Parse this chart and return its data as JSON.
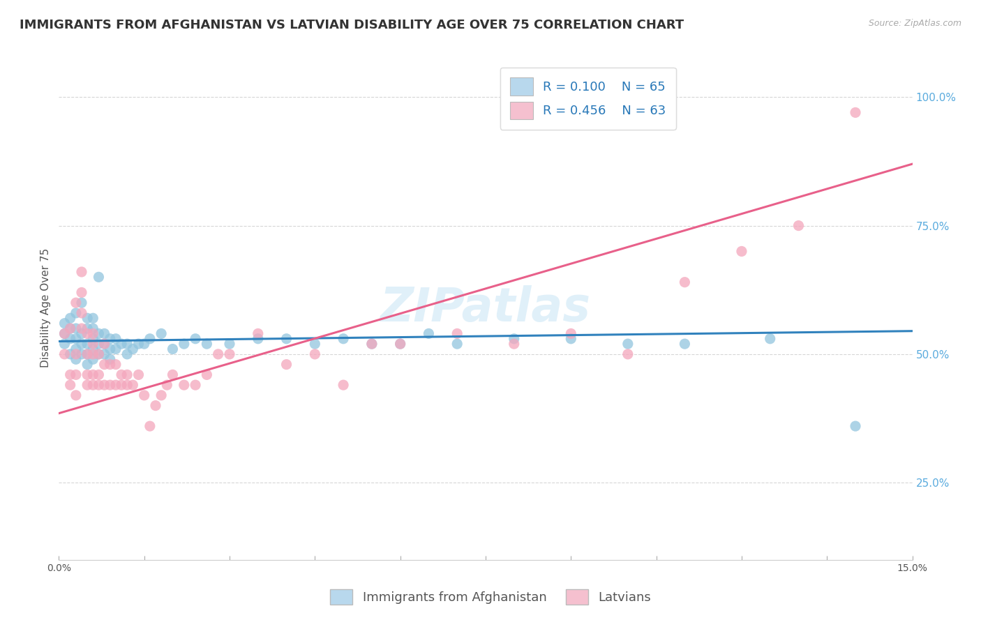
{
  "title": "IMMIGRANTS FROM AFGHANISTAN VS LATVIAN DISABILITY AGE OVER 75 CORRELATION CHART",
  "source_text": "Source: ZipAtlas.com",
  "ylabel": "Disability Age Over 75",
  "xlim": [
    0.0,
    0.15
  ],
  "ylim": [
    0.1,
    1.08
  ],
  "xticks": [
    0.0,
    0.015,
    0.03,
    0.045,
    0.06,
    0.075,
    0.09,
    0.105,
    0.12,
    0.135,
    0.15
  ],
  "yticks": [
    0.25,
    0.5,
    0.75,
    1.0
  ],
  "yticklabels": [
    "25.0%",
    "50.0%",
    "75.0%",
    "100.0%"
  ],
  "legend_r1": "R = 0.100",
  "legend_n1": "N = 65",
  "legend_r2": "R = 0.456",
  "legend_n2": "N = 63",
  "color_blue": "#92c5de",
  "color_blue_line": "#3182bd",
  "color_pink": "#f4a6bc",
  "color_pink_line": "#e8608a",
  "color_blue_legend_box": "#b8d8ed",
  "color_pink_legend_box": "#f5c0cf",
  "watermark_text": "ZIPatlas",
  "blue_scatter_x": [
    0.001,
    0.001,
    0.001,
    0.002,
    0.002,
    0.002,
    0.002,
    0.003,
    0.003,
    0.003,
    0.003,
    0.003,
    0.004,
    0.004,
    0.004,
    0.004,
    0.005,
    0.005,
    0.005,
    0.005,
    0.005,
    0.006,
    0.006,
    0.006,
    0.006,
    0.006,
    0.007,
    0.007,
    0.007,
    0.007,
    0.008,
    0.008,
    0.008,
    0.009,
    0.009,
    0.009,
    0.01,
    0.01,
    0.011,
    0.012,
    0.012,
    0.013,
    0.014,
    0.015,
    0.016,
    0.018,
    0.02,
    0.022,
    0.024,
    0.026,
    0.03,
    0.035,
    0.04,
    0.045,
    0.05,
    0.055,
    0.06,
    0.065,
    0.07,
    0.08,
    0.09,
    0.1,
    0.11,
    0.125,
    0.14
  ],
  "blue_scatter_y": [
    0.52,
    0.54,
    0.56,
    0.5,
    0.53,
    0.55,
    0.57,
    0.49,
    0.51,
    0.53,
    0.55,
    0.58,
    0.5,
    0.52,
    0.54,
    0.6,
    0.48,
    0.5,
    0.52,
    0.55,
    0.57,
    0.49,
    0.51,
    0.53,
    0.55,
    0.57,
    0.5,
    0.52,
    0.54,
    0.65,
    0.5,
    0.52,
    0.54,
    0.49,
    0.51,
    0.53,
    0.51,
    0.53,
    0.52,
    0.5,
    0.52,
    0.51,
    0.52,
    0.52,
    0.53,
    0.54,
    0.51,
    0.52,
    0.53,
    0.52,
    0.52,
    0.53,
    0.53,
    0.52,
    0.53,
    0.52,
    0.52,
    0.54,
    0.52,
    0.53,
    0.53,
    0.52,
    0.52,
    0.53,
    0.36
  ],
  "pink_scatter_x": [
    0.001,
    0.001,
    0.002,
    0.002,
    0.002,
    0.003,
    0.003,
    0.003,
    0.003,
    0.004,
    0.004,
    0.004,
    0.004,
    0.005,
    0.005,
    0.005,
    0.005,
    0.006,
    0.006,
    0.006,
    0.006,
    0.006,
    0.007,
    0.007,
    0.007,
    0.008,
    0.008,
    0.008,
    0.009,
    0.009,
    0.01,
    0.01,
    0.011,
    0.011,
    0.012,
    0.012,
    0.013,
    0.014,
    0.015,
    0.016,
    0.017,
    0.018,
    0.019,
    0.02,
    0.022,
    0.024,
    0.026,
    0.028,
    0.03,
    0.035,
    0.04,
    0.045,
    0.05,
    0.055,
    0.06,
    0.07,
    0.08,
    0.09,
    0.1,
    0.11,
    0.12,
    0.13,
    0.14
  ],
  "pink_scatter_y": [
    0.5,
    0.54,
    0.44,
    0.46,
    0.55,
    0.42,
    0.46,
    0.5,
    0.6,
    0.55,
    0.58,
    0.62,
    0.66,
    0.44,
    0.46,
    0.5,
    0.54,
    0.44,
    0.46,
    0.5,
    0.52,
    0.54,
    0.44,
    0.46,
    0.5,
    0.44,
    0.48,
    0.52,
    0.44,
    0.48,
    0.44,
    0.48,
    0.44,
    0.46,
    0.44,
    0.46,
    0.44,
    0.46,
    0.42,
    0.36,
    0.4,
    0.42,
    0.44,
    0.46,
    0.44,
    0.44,
    0.46,
    0.5,
    0.5,
    0.54,
    0.48,
    0.5,
    0.44,
    0.52,
    0.52,
    0.54,
    0.52,
    0.54,
    0.5,
    0.64,
    0.7,
    0.75,
    0.97
  ],
  "blue_line_x": [
    0.0,
    0.15
  ],
  "blue_line_y": [
    0.525,
    0.545
  ],
  "pink_line_x": [
    0.0,
    0.15
  ],
  "pink_line_y": [
    0.385,
    0.87
  ],
  "title_fontsize": 13,
  "axis_label_fontsize": 11,
  "tick_fontsize": 10,
  "legend_fontsize": 13
}
